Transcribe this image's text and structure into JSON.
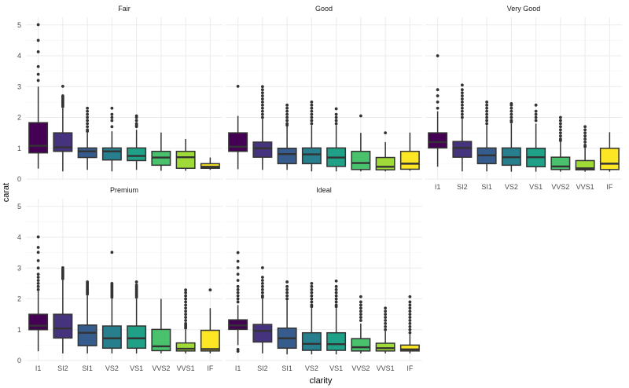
{
  "chart_data": {
    "type": "boxplot",
    "xlabel": "clarity",
    "ylabel": "carat",
    "ylim": [
      0,
      5.25
    ],
    "yticks": [
      0,
      1,
      2,
      3,
      4,
      5
    ],
    "categories": [
      "I1",
      "SI2",
      "SI1",
      "VS2",
      "VS1",
      "VVS2",
      "VVS1",
      "IF"
    ],
    "colors": [
      "#440154",
      "#46337e",
      "#365c8d",
      "#277f8e",
      "#1fa187",
      "#4ac16d",
      "#a0da39",
      "#fde725"
    ],
    "facet_order": [
      "Fair",
      "Good",
      "Very Good",
      "Premium",
      "Ideal"
    ],
    "facets": [
      {
        "title": "Fair",
        "boxes": [
          {
            "cat": "I1",
            "q1": 0.85,
            "med": 1.08,
            "q3": 1.83,
            "lo": 0.34,
            "hi": 3.0,
            "out": [
              3.2,
              3.4,
              3.65,
              4.13,
              4.5,
              5.01
            ]
          },
          {
            "cat": "SI2",
            "q1": 0.9,
            "med": 1.03,
            "q3": 1.5,
            "lo": 0.25,
            "hi": 2.3,
            "out": [
              2.35,
              2.4,
              2.45,
              2.5,
              2.55,
              2.6,
              2.65,
              2.7,
              3.01
            ]
          },
          {
            "cat": "SI1",
            "q1": 0.7,
            "med": 0.9,
            "q3": 1.01,
            "lo": 0.3,
            "hi": 1.5,
            "out": [
              1.55,
              1.6,
              1.7,
              1.8,
              1.9,
              2.0,
              2.1,
              2.2,
              2.3
            ]
          },
          {
            "cat": "VS2",
            "q1": 0.62,
            "med": 0.9,
            "q3": 1.01,
            "lo": 0.25,
            "hi": 1.55,
            "out": [
              1.7,
              1.9,
              2.0,
              2.1,
              2.3
            ]
          },
          {
            "cat": "VS1",
            "q1": 0.6,
            "med": 0.75,
            "q3": 1.01,
            "lo": 0.3,
            "hi": 1.6,
            "out": [
              1.7,
              1.75,
              1.8,
              1.9,
              2.0,
              2.05
            ]
          },
          {
            "cat": "VVS2",
            "q1": 0.45,
            "med": 0.7,
            "q3": 0.9,
            "lo": 0.27,
            "hi": 1.51,
            "out": []
          },
          {
            "cat": "VVS1",
            "q1": 0.35,
            "med": 0.71,
            "q3": 0.9,
            "lo": 0.27,
            "hi": 1.3,
            "out": []
          },
          {
            "cat": "IF",
            "q1": 0.35,
            "med": 0.4,
            "q3": 0.5,
            "lo": 0.3,
            "hi": 0.7,
            "out": []
          }
        ]
      },
      {
        "title": "Good",
        "boxes": [
          {
            "cat": "I1",
            "q1": 0.9,
            "med": 1.05,
            "q3": 1.5,
            "lo": 0.32,
            "hi": 2.05,
            "out": [
              3.01
            ]
          },
          {
            "cat": "SI2",
            "q1": 0.71,
            "med": 1.0,
            "q3": 1.2,
            "lo": 0.3,
            "hi": 1.95,
            "out": [
              2.0,
              2.1,
              2.2,
              2.3,
              2.4,
              2.5,
              2.6,
              2.7,
              2.8,
              2.9,
              3.0
            ]
          },
          {
            "cat": "SI1",
            "q1": 0.5,
            "med": 0.81,
            "q3": 1.0,
            "lo": 0.3,
            "hi": 1.72,
            "out": [
              1.75,
              1.8,
              1.9,
              2.0,
              2.1,
              2.2,
              2.3,
              2.4
            ]
          },
          {
            "cat": "VS2",
            "q1": 0.5,
            "med": 0.8,
            "q3": 1.01,
            "lo": 0.25,
            "hi": 1.75,
            "out": [
              1.8,
              1.9,
              2.0,
              2.1,
              2.2,
              2.3,
              2.4,
              2.5
            ]
          },
          {
            "cat": "VS1",
            "q1": 0.41,
            "med": 0.7,
            "q3": 1.01,
            "lo": 0.25,
            "hi": 1.75,
            "out": [
              1.8,
              1.9,
              2.0,
              2.1,
              2.28
            ]
          },
          {
            "cat": "VVS2",
            "q1": 0.31,
            "med": 0.52,
            "q3": 0.9,
            "lo": 0.25,
            "hi": 1.5,
            "out": [
              2.05
            ]
          },
          {
            "cat": "VVS1",
            "q1": 0.3,
            "med": 0.4,
            "q3": 0.7,
            "lo": 0.25,
            "hi": 1.2,
            "out": [
              1.5
            ]
          },
          {
            "cat": "IF",
            "q1": 0.32,
            "med": 0.5,
            "q3": 0.9,
            "lo": 0.27,
            "hi": 1.51,
            "out": []
          }
        ]
      },
      {
        "title": "Very Good",
        "boxes": [
          {
            "cat": "I1",
            "q1": 1.01,
            "med": 1.2,
            "q3": 1.5,
            "lo": 0.4,
            "hi": 2.2,
            "out": [
              2.3,
              2.5,
              2.7,
              2.9,
              4.0
            ]
          },
          {
            "cat": "SI2",
            "q1": 0.71,
            "med": 1.01,
            "q3": 1.22,
            "lo": 0.25,
            "hi": 1.95,
            "out": [
              2.0,
              2.1,
              2.2,
              2.3,
              2.4,
              2.5,
              2.6,
              2.7,
              2.8,
              2.9,
              3.05
            ]
          },
          {
            "cat": "SI1",
            "q1": 0.5,
            "med": 0.77,
            "q3": 1.01,
            "lo": 0.25,
            "hi": 1.75,
            "out": [
              1.8,
              1.9,
              2.0,
              2.1,
              2.2,
              2.3,
              2.4,
              2.5
            ]
          },
          {
            "cat": "VS2",
            "q1": 0.45,
            "med": 0.71,
            "q3": 1.01,
            "lo": 0.24,
            "hi": 1.8,
            "out": [
              1.85,
              1.9,
              2.0,
              2.1,
              2.2,
              2.3,
              2.4,
              2.45
            ]
          },
          {
            "cat": "VS1",
            "q1": 0.4,
            "med": 0.71,
            "q3": 1.0,
            "lo": 0.24,
            "hi": 1.8,
            "out": [
              1.9,
              2.0,
              2.1,
              2.2,
              2.4
            ]
          },
          {
            "cat": "VVS2",
            "q1": 0.31,
            "med": 0.41,
            "q3": 0.71,
            "lo": 0.24,
            "hi": 1.21,
            "out": [
              1.25,
              1.3,
              1.4,
              1.5,
              1.6,
              1.7,
              1.8,
              1.9,
              2.0
            ]
          },
          {
            "cat": "VVS1",
            "q1": 0.3,
            "med": 0.35,
            "q3": 0.6,
            "lo": 0.24,
            "hi": 1.0,
            "out": [
              1.05,
              1.1,
              1.2,
              1.3,
              1.4,
              1.5,
              1.6,
              1.7
            ]
          },
          {
            "cat": "IF",
            "q1": 0.31,
            "med": 0.5,
            "q3": 1.0,
            "lo": 0.24,
            "hi": 1.52,
            "out": []
          }
        ]
      },
      {
        "title": "Premium",
        "boxes": [
          {
            "cat": "I1",
            "q1": 1.0,
            "med": 1.13,
            "q3": 1.5,
            "lo": 0.3,
            "hi": 2.25,
            "out": [
              2.3,
              2.4,
              2.5,
              2.6,
              2.7,
              2.8,
              3.0,
              3.24,
              3.51,
              3.67,
              4.01
            ]
          },
          {
            "cat": "SI2",
            "q1": 0.73,
            "med": 1.04,
            "q3": 1.5,
            "lo": 0.23,
            "hi": 2.6,
            "out": [
              2.65,
              2.7,
              2.75,
              2.8,
              2.85,
              2.9,
              2.95,
              3.01
            ]
          },
          {
            "cat": "SI1",
            "q1": 0.48,
            "med": 0.9,
            "q3": 1.15,
            "lo": 0.23,
            "hi": 2.1,
            "out": [
              2.15,
              2.2,
              2.25,
              2.3,
              2.35,
              2.4,
              2.45,
              2.5,
              2.55
            ]
          },
          {
            "cat": "VS2",
            "q1": 0.4,
            "med": 0.72,
            "q3": 1.12,
            "lo": 0.23,
            "hi": 2.0,
            "out": [
              2.05,
              2.1,
              2.15,
              2.2,
              2.25,
              2.3,
              2.35,
              2.4,
              2.45,
              2.5,
              3.51
            ]
          },
          {
            "cat": "VS1",
            "q1": 0.4,
            "med": 0.72,
            "q3": 1.12,
            "lo": 0.23,
            "hi": 2.0,
            "out": [
              2.05,
              2.1,
              2.15,
              2.2,
              2.25,
              2.3,
              2.35,
              2.4,
              2.45,
              2.55
            ]
          },
          {
            "cat": "VVS2",
            "q1": 0.32,
            "med": 0.46,
            "q3": 1.01,
            "lo": 0.23,
            "hi": 2.0,
            "out": []
          },
          {
            "cat": "VVS1",
            "q1": 0.31,
            "med": 0.38,
            "q3": 0.57,
            "lo": 0.23,
            "hi": 1.0,
            "out": [
              1.05,
              1.1,
              1.15,
              1.2,
              1.3,
              1.4,
              1.5,
              1.6,
              1.7,
              1.8,
              1.9,
              2.0,
              2.1,
              2.2,
              2.29
            ]
          },
          {
            "cat": "IF",
            "q1": 0.31,
            "med": 0.37,
            "q3": 0.98,
            "lo": 0.23,
            "hi": 1.7,
            "out": [
              2.29
            ]
          }
        ]
      },
      {
        "title": "Ideal",
        "boxes": [
          {
            "cat": "I1",
            "q1": 1.01,
            "med": 1.14,
            "q3": 1.32,
            "lo": 0.5,
            "hi": 1.8,
            "out": [
              0.3,
              0.36,
              1.9,
              2.0,
              2.1,
              2.2,
              2.3,
              2.4,
              2.6,
              2.8,
              3.01,
              3.22,
              3.5
            ]
          },
          {
            "cat": "SI2",
            "q1": 0.6,
            "med": 0.96,
            "q3": 1.17,
            "lo": 0.23,
            "hi": 2.0,
            "out": [
              2.05,
              2.1,
              2.2,
              2.3,
              2.4,
              2.5,
              2.6,
              2.7,
              3.01
            ]
          },
          {
            "cat": "SI1",
            "q1": 0.4,
            "med": 0.72,
            "q3": 1.05,
            "lo": 0.2,
            "hi": 1.95,
            "out": [
              2.0,
              2.1,
              2.2,
              2.3,
              2.4,
              2.55
            ]
          },
          {
            "cat": "VS2",
            "q1": 0.33,
            "med": 0.54,
            "q3": 0.9,
            "lo": 0.2,
            "hi": 1.7,
            "out": [
              1.75,
              1.8,
              1.9,
              2.0,
              2.1,
              2.2,
              2.3,
              2.4,
              2.5
            ]
          },
          {
            "cat": "VS1",
            "q1": 0.33,
            "med": 0.53,
            "q3": 0.9,
            "lo": 0.2,
            "hi": 1.7,
            "out": [
              1.75,
              1.8,
              1.9,
              2.0,
              2.1,
              2.2,
              2.3,
              2.4,
              2.58
            ]
          },
          {
            "cat": "VVS2",
            "q1": 0.31,
            "med": 0.43,
            "q3": 0.71,
            "lo": 0.23,
            "hi": 1.2,
            "out": [
              1.3,
              1.4,
              1.5,
              1.6,
              1.7,
              1.8,
              1.9,
              2.07
            ]
          },
          {
            "cat": "VVS1",
            "q1": 0.31,
            "med": 0.4,
            "q3": 0.56,
            "lo": 0.23,
            "hi": 0.95,
            "out": [
              1.0,
              1.1,
              1.2,
              1.3,
              1.4,
              1.5,
              1.6,
              1.7
            ]
          },
          {
            "cat": "IF",
            "q1": 0.31,
            "med": 0.36,
            "q3": 0.5,
            "lo": 0.23,
            "hi": 0.85,
            "out": [
              0.9,
              1.0,
              1.1,
              1.2,
              1.3,
              1.4,
              1.5,
              1.6,
              1.7,
              1.8,
              1.9,
              2.07
            ]
          }
        ]
      }
    ]
  }
}
